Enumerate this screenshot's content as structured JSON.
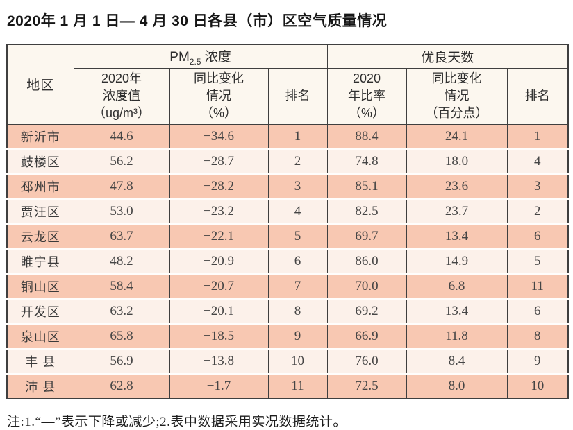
{
  "title": "2020年 1 月 1 日— 4 月 30 日各县（市）区空气质量情况",
  "table": {
    "region_header": "地区",
    "pm_group": {
      "main": "PM",
      "sub": "2.5",
      "rest": " 浓度"
    },
    "days_group": "优良天数",
    "subheaders": [
      {
        "line1": "2020年",
        "line2": "浓度值",
        "line3": "（ug/m³）"
      },
      {
        "line1": "同比变化",
        "line2": "情况",
        "line3": "（%）"
      },
      {
        "line1": "排名"
      },
      {
        "line1": "2020",
        "line2": "年比率",
        "line3": "（%）"
      },
      {
        "line1": "同比变化",
        "line2": "情况",
        "line3": "（百分点）"
      },
      {
        "line1": "排名"
      }
    ],
    "rows": [
      {
        "region": "新沂市",
        "pm_value": "44.6",
        "pm_change": "−34.6",
        "pm_rank": "1",
        "days_rate": "88.4",
        "days_change": "24.1",
        "days_rank": "1"
      },
      {
        "region": "鼓楼区",
        "pm_value": "56.2",
        "pm_change": "−28.7",
        "pm_rank": "2",
        "days_rate": "74.8",
        "days_change": "18.0",
        "days_rank": "4"
      },
      {
        "region": "邳州市",
        "pm_value": "47.8",
        "pm_change": "−28.2",
        "pm_rank": "3",
        "days_rate": "85.1",
        "days_change": "23.6",
        "days_rank": "3"
      },
      {
        "region": "贾汪区",
        "pm_value": "53.0",
        "pm_change": "−23.2",
        "pm_rank": "4",
        "days_rate": "82.5",
        "days_change": "23.7",
        "days_rank": "2"
      },
      {
        "region": "云龙区",
        "pm_value": "63.7",
        "pm_change": "−22.1",
        "pm_rank": "5",
        "days_rate": "69.7",
        "days_change": "13.4",
        "days_rank": "6"
      },
      {
        "region": "睢宁县",
        "pm_value": "48.2",
        "pm_change": "−20.9",
        "pm_rank": "6",
        "days_rate": "86.0",
        "days_change": "14.9",
        "days_rank": "5"
      },
      {
        "region": "铜山区",
        "pm_value": "58.4",
        "pm_change": "−20.7",
        "pm_rank": "7",
        "days_rate": "70.0",
        "days_change": "6.8",
        "days_rank": "11"
      },
      {
        "region": "开发区",
        "pm_value": "63.2",
        "pm_change": "−20.1",
        "pm_rank": "8",
        "days_rate": "69.2",
        "days_change": "13.4",
        "days_rank": "6"
      },
      {
        "region": "泉山区",
        "pm_value": "65.8",
        "pm_change": "−18.5",
        "pm_rank": "9",
        "days_rate": "66.9",
        "days_change": "11.8",
        "days_rank": "8"
      },
      {
        "region": "丰 县",
        "pm_value": "56.9",
        "pm_change": "−13.8",
        "pm_rank": "10",
        "days_rate": "76.0",
        "days_change": "8.4",
        "days_rank": "9"
      },
      {
        "region": "沛 县",
        "pm_value": "62.8",
        "pm_change": "−1.7",
        "pm_rank": "11",
        "days_rate": "72.5",
        "days_change": "8.0",
        "days_rank": "10"
      }
    ]
  },
  "note": "注:1.“—”表示下降或减少;2.表中数据采用实况数据统计。",
  "colors": {
    "row_odd": "#f8c8b2",
    "row_even": "#fcf1ea",
    "header_bg": "#fcf7ef",
    "border": "#3f3f3f"
  }
}
